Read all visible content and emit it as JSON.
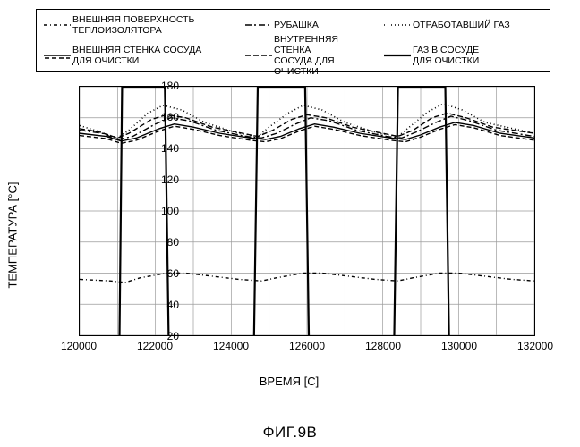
{
  "figure_label": "ФИГ.9B",
  "axes": {
    "x": {
      "label": "ВРЕМЯ [C]",
      "min": 120000,
      "max": 132000,
      "tick_step": 2000,
      "fontsize_label": 13,
      "fontsize_tick": 12
    },
    "y": {
      "label": "ТЕМПЕРАТУРА [°C]",
      "min": 20,
      "max": 180,
      "tick_step": 20,
      "fontsize_label": 13,
      "fontsize_tick": 12
    }
  },
  "colors": {
    "frame": "#000000",
    "grid": "#9a9a9a",
    "background": "#ffffff",
    "series_line": "#000000"
  },
  "legend": {
    "fontsize": 10.5,
    "items": [
      {
        "id": "outer-insulator",
        "label": "ВНЕШНЯЯ ПОВЕРХНОСТЬ\nТЕПЛОИЗОЛЯТОРА",
        "dash": "4 3 1 3"
      },
      {
        "id": "jacket",
        "label": "РУБАШКА",
        "dash": "7 3 2 3"
      },
      {
        "id": "exhaust",
        "label": "ОТРАБОТАВШИЙ ГАЗ",
        "dash": "1 3"
      },
      {
        "id": "outer-wall",
        "label": "ВНЕШНЯЯ СТЕНКА СОСУДА\nДЛЯ ОЧИСТКИ",
        "dash": "",
        "underline_dash": "5 3"
      },
      {
        "id": "inner-wall",
        "label": "ВНУТРЕННЯЯ СТЕНКА\nСОСУДА ДЛЯ ОЧИСТКИ",
        "dash": "6 3"
      },
      {
        "id": "gas-in-vessel",
        "label": "ГАЗ В СОСУДЕ\nДЛЯ ОЧИСТКИ",
        "dash": ""
      }
    ]
  },
  "grid_x_lines": [
    120000,
    121000,
    122000,
    123000,
    124000,
    125000,
    126000,
    127000,
    128000,
    129000,
    130000,
    131000,
    132000
  ],
  "grid_y_lines": [
    20,
    40,
    60,
    80,
    100,
    120,
    140,
    160,
    180
  ],
  "series": [
    {
      "id": "gas-in-vessel",
      "dash": "",
      "width": 2.2,
      "points": [
        [
          120000,
          16
        ],
        [
          121000,
          16
        ],
        [
          121050,
          16
        ],
        [
          121120,
          180
        ],
        [
          122250,
          180
        ],
        [
          122350,
          16
        ],
        [
          124600,
          16
        ],
        [
          124700,
          180
        ],
        [
          125950,
          180
        ],
        [
          126050,
          16
        ],
        [
          128300,
          16
        ],
        [
          128400,
          180
        ],
        [
          129650,
          180
        ],
        [
          129750,
          16
        ],
        [
          132000,
          16
        ]
      ]
    },
    {
      "id": "exhaust",
      "dash": "1 3",
      "width": 1.6,
      "points": [
        [
          120000,
          155
        ],
        [
          120400,
          152
        ],
        [
          121000,
          147
        ],
        [
          121300,
          152
        ],
        [
          121800,
          163
        ],
        [
          122200,
          168
        ],
        [
          122700,
          165
        ],
        [
          123300,
          157
        ],
        [
          124200,
          150
        ],
        [
          124700,
          148
        ],
        [
          125000,
          154
        ],
        [
          125500,
          163
        ],
        [
          125900,
          168
        ],
        [
          126400,
          165
        ],
        [
          127000,
          157
        ],
        [
          127900,
          150
        ],
        [
          128400,
          148
        ],
        [
          128700,
          154
        ],
        [
          129200,
          164
        ],
        [
          129600,
          169
        ],
        [
          130100,
          165
        ],
        [
          130700,
          157
        ],
        [
          132000,
          150
        ]
      ]
    },
    {
      "id": "inner-wall",
      "dash": "6 3",
      "width": 1.4,
      "points": [
        [
          120000,
          153
        ],
        [
          120500,
          151
        ],
        [
          121000,
          147
        ],
        [
          121300,
          150
        ],
        [
          121900,
          159
        ],
        [
          122300,
          162
        ],
        [
          122800,
          160
        ],
        [
          123500,
          154
        ],
        [
          124300,
          150
        ],
        [
          124700,
          148
        ],
        [
          125100,
          152
        ],
        [
          125600,
          159
        ],
        [
          126000,
          162
        ],
        [
          126500,
          160
        ],
        [
          127200,
          154
        ],
        [
          128000,
          150
        ],
        [
          128400,
          148
        ],
        [
          128800,
          152
        ],
        [
          129300,
          160
        ],
        [
          129700,
          163
        ],
        [
          130200,
          160
        ],
        [
          130900,
          154
        ],
        [
          132000,
          150
        ]
      ]
    },
    {
      "id": "jacket",
      "dash": "7 3 2 3",
      "width": 1.4,
      "points": [
        [
          120000,
          152
        ],
        [
          120600,
          150
        ],
        [
          121000,
          146
        ],
        [
          121400,
          148
        ],
        [
          122000,
          156
        ],
        [
          122400,
          160
        ],
        [
          122900,
          158
        ],
        [
          123600,
          152
        ],
        [
          124400,
          148
        ],
        [
          124800,
          147
        ],
        [
          125200,
          150
        ],
        [
          125700,
          156
        ],
        [
          126100,
          160
        ],
        [
          126600,
          158
        ],
        [
          127300,
          152
        ],
        [
          128100,
          148
        ],
        [
          128500,
          147
        ],
        [
          128900,
          151
        ],
        [
          129400,
          157
        ],
        [
          129800,
          161
        ],
        [
          130300,
          158
        ],
        [
          131000,
          152
        ],
        [
          132000,
          148
        ]
      ]
    },
    {
      "id": "outer-wall",
      "dash": "",
      "width": 1.4,
      "underline_dash": "5 3",
      "points": [
        [
          120000,
          150
        ],
        [
          120700,
          148
        ],
        [
          121100,
          145
        ],
        [
          121500,
          147
        ],
        [
          122100,
          153
        ],
        [
          122500,
          156
        ],
        [
          123000,
          154
        ],
        [
          123700,
          150
        ],
        [
          124500,
          147
        ],
        [
          124900,
          146
        ],
        [
          125300,
          148
        ],
        [
          125800,
          153
        ],
        [
          126200,
          156
        ],
        [
          126700,
          154
        ],
        [
          127400,
          150
        ],
        [
          128200,
          147
        ],
        [
          128600,
          146
        ],
        [
          129000,
          149
        ],
        [
          129500,
          154
        ],
        [
          129900,
          157
        ],
        [
          130400,
          155
        ],
        [
          131100,
          150
        ],
        [
          132000,
          147
        ]
      ]
    },
    {
      "id": "outer-insulator",
      "dash": "4 3 1 3",
      "width": 1.4,
      "points": [
        [
          120000,
          56
        ],
        [
          120800,
          55
        ],
        [
          121200,
          54
        ],
        [
          121600,
          57
        ],
        [
          122300,
          60
        ],
        [
          122800,
          60
        ],
        [
          123500,
          58
        ],
        [
          124200,
          56
        ],
        [
          124800,
          55
        ],
        [
          125200,
          57
        ],
        [
          125900,
          60
        ],
        [
          126400,
          60
        ],
        [
          127100,
          58
        ],
        [
          127800,
          56
        ],
        [
          128400,
          55
        ],
        [
          128800,
          57
        ],
        [
          129500,
          60
        ],
        [
          130000,
          60
        ],
        [
          130700,
          58
        ],
        [
          131400,
          56
        ],
        [
          132000,
          55
        ]
      ]
    }
  ]
}
